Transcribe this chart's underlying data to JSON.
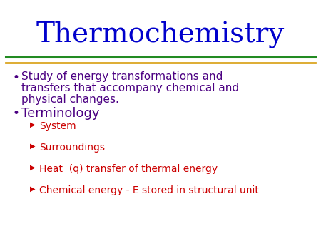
{
  "title": "Thermochemistry",
  "title_color": "#0000CC",
  "title_fontsize": 28,
  "title_font": "serif",
  "line1_color": "#228B22",
  "line2_color": "#DAA520",
  "bg_color": "#FFFFFF",
  "bullet_color": "#4B0082",
  "bullet1_text_line1": "Study of energy transformations and",
  "bullet1_text_line2": "transfers that accompany chemical and",
  "bullet1_text_line3": "physical changes.",
  "bullet2_text": "Terminology",
  "sub_items": [
    "System",
    "Surroundings",
    "Heat  (q) transfer of thermal energy",
    "Chemical energy - E stored in structural unit"
  ],
  "sub_color": "#CC0000",
  "bullet_fontsize": 11.0,
  "sub_fontsize": 10.0,
  "terminology_fontsize": 13.0
}
